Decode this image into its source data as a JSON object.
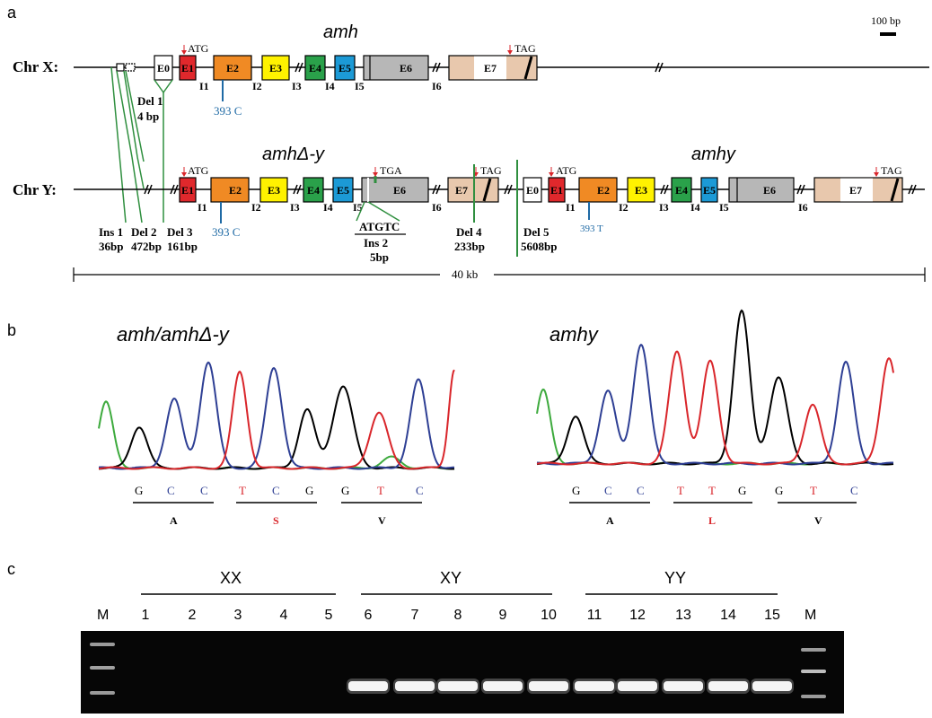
{
  "panels": {
    "a": {
      "letter": "a",
      "scale_bar": "100 bp",
      "chrX": {
        "label": "Chr X:",
        "gene": "amh",
        "start_codon": "ATG",
        "stop_codon": "TAG",
        "exons": [
          {
            "label": "E0",
            "color": "#ffffff"
          },
          {
            "label": "E1",
            "color": "#e0282c"
          },
          {
            "label": "E2",
            "color": "#f08a24"
          },
          {
            "label": "E3",
            "color": "#fff200"
          },
          {
            "label": "E4",
            "color": "#2aa14a"
          },
          {
            "label": "E5",
            "color": "#1c9ad6"
          },
          {
            "label": "E6",
            "color": "#b7b7b7"
          },
          {
            "label": "E7",
            "color": "#e8c8ad"
          }
        ],
        "introns": [
          "I1",
          "I2",
          "I3",
          "I4",
          "I5",
          "I6"
        ],
        "snp": "393 C",
        "del1": "Del 1",
        "del1_size": "4 bp"
      },
      "chrY": {
        "label": "Chr Y:",
        "gene1": "amhΔ-y",
        "gene2": "amhy",
        "start_codon": "ATG",
        "start_codon2": "ATG",
        "stop_codon": "TAG",
        "stop_codon2": "TAG",
        "premature_stop": "TGA",
        "exons1": [
          "E1",
          "E2",
          "E3",
          "E4",
          "E5",
          "E6",
          "E7"
        ],
        "exons2": [
          "E0",
          "E1",
          "E2",
          "E3",
          "E4",
          "E5",
          "E6",
          "E7"
        ],
        "introns1": [
          "I1",
          "I2",
          "I3",
          "I4",
          "I5",
          "I6"
        ],
        "introns2": [
          "I1",
          "I2",
          "I3",
          "I4",
          "I5",
          "I6"
        ],
        "snp1": "393 C",
        "snp2": "393 T",
        "ins1": "Ins 1",
        "ins1_size": "36bp",
        "del2": "Del 2",
        "del2_size": "472bp",
        "del3": "Del 3",
        "del3_size": "161bp",
        "ins2_seq": "ATGTC",
        "ins2": "Ins 2",
        "ins2_size": "5bp",
        "del4": "Del 4",
        "del4_size": "233bp",
        "del5": "Del 5",
        "del5_size": "5608bp",
        "span": "40 kb"
      }
    },
    "b": {
      "letter": "b",
      "left": {
        "title": "amh/amhΔ-y",
        "bases": [
          "G",
          "C",
          "C",
          "T",
          "C",
          "G",
          "G",
          "T",
          "C"
        ],
        "codons": [
          "A",
          "S",
          "V"
        ]
      },
      "right": {
        "title": "amhy",
        "bases": [
          "G",
          "C",
          "C",
          "T",
          "T",
          "G",
          "G",
          "T",
          "C"
        ],
        "codons": [
          "A",
          "L",
          "V"
        ]
      },
      "base_colors": {
        "G": "#000000",
        "C": "#2e3f94",
        "T": "#d9262b",
        "A": "#3daa3d"
      },
      "codon_colors": {
        "A": "#000000",
        "S": "#d9262b",
        "L": "#d9262b",
        "V": "#000000"
      }
    },
    "c": {
      "letter": "c",
      "marker": "M",
      "groups": [
        {
          "name": "XX",
          "lanes": [
            "1",
            "2",
            "3",
            "4",
            "5"
          ]
        },
        {
          "name": "XY",
          "lanes": [
            "6",
            "7",
            "8",
            "9",
            "10"
          ]
        },
        {
          "name": "YY",
          "lanes": [
            "11",
            "12",
            "13",
            "14",
            "15"
          ]
        }
      ],
      "band_present": [
        0,
        0,
        0,
        0,
        0,
        1,
        1,
        1,
        1,
        1,
        1,
        1,
        1,
        1,
        1
      ]
    }
  }
}
